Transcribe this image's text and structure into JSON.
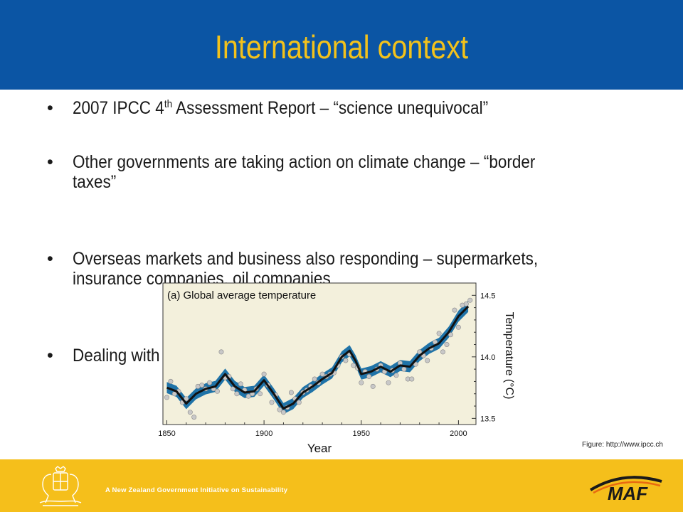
{
  "slide": {
    "title": "International context",
    "bullets": [
      {
        "pre": "2007 IPCC  4",
        "sup": "th",
        "post": " Assessment Report – “science unequivocal”"
      },
      {
        "line1": "Other governments are taking action on climate change – “border",
        "line2": "taxes”"
      },
      {
        "line1": "Overseas markets and business also responding – supermarkets,",
        "line2": "insurance companies, oil companies"
      },
      {
        "text": "Dealing with climate change isn’t going to go away"
      }
    ],
    "bullet_glyph": "•",
    "credit": "Figure: http://www.ipcc.ch",
    "footer_tagline": "A New Zealand Government Initiative on Sustainability",
    "logo_text": "MAF",
    "crest_icon": "nz-coat-of-arms-icon"
  },
  "colors": {
    "header_bg": "#0b55a4",
    "title": "#f3c21b",
    "footer_bg": "#f5bf1b",
    "band": "#1f73a8",
    "smooth_line": "#111111",
    "points": "#c8c8c8",
    "logo_dark": "#1a1a1a",
    "logo_orange": "#e86a10"
  },
  "chart_data": {
    "type": "line",
    "panel_label": "(a) Global average temperature",
    "xlabel": "Year",
    "ylabel": "Temperature (°C)",
    "xlim": [
      1848,
      2009
    ],
    "ylim": [
      13.45,
      14.6
    ],
    "x_ticks": [
      1850,
      1900,
      1950,
      2000
    ],
    "y_ticks": [
      13.5,
      14.0,
      14.5
    ],
    "y_axis_side": "right",
    "grid": false,
    "series": [
      {
        "kind": "smoothed",
        "x": [
          1850,
          1855,
          1860,
          1865,
          1870,
          1875,
          1880,
          1885,
          1890,
          1895,
          1900,
          1905,
          1910,
          1915,
          1920,
          1925,
          1930,
          1935,
          1940,
          1944,
          1947,
          1950,
          1955,
          1960,
          1965,
          1970,
          1975,
          1980,
          1985,
          1990,
          1995,
          2000,
          2005
        ],
        "y": [
          13.75,
          13.72,
          13.62,
          13.7,
          13.74,
          13.76,
          13.86,
          13.76,
          13.71,
          13.72,
          13.81,
          13.7,
          13.58,
          13.62,
          13.71,
          13.76,
          13.82,
          13.87,
          14.0,
          14.05,
          13.97,
          13.86,
          13.88,
          13.92,
          13.88,
          13.93,
          13.92,
          14.01,
          14.07,
          14.11,
          14.2,
          14.33,
          14.41
        ]
      },
      {
        "kind": "annual",
        "x": [
          1850,
          1852,
          1854,
          1856,
          1858,
          1860,
          1862,
          1864,
          1866,
          1868,
          1870,
          1872,
          1874,
          1876,
          1878,
          1880,
          1882,
          1884,
          1886,
          1888,
          1890,
          1892,
          1894,
          1896,
          1898,
          1900,
          1902,
          1904,
          1906,
          1908,
          1910,
          1912,
          1914,
          1916,
          1918,
          1920,
          1922,
          1924,
          1926,
          1928,
          1930,
          1932,
          1934,
          1936,
          1938,
          1940,
          1942,
          1944,
          1946,
          1948,
          1950,
          1952,
          1954,
          1956,
          1958,
          1960,
          1962,
          1964,
          1966,
          1968,
          1970,
          1972,
          1974,
          1976,
          1978,
          1980,
          1982,
          1984,
          1986,
          1988,
          1990,
          1992,
          1994,
          1996,
          1998,
          2000,
          2002,
          2004,
          2006
        ],
        "y": [
          13.67,
          13.8,
          13.7,
          13.72,
          13.63,
          13.66,
          13.55,
          13.51,
          13.76,
          13.77,
          13.74,
          13.79,
          13.74,
          13.72,
          14.04,
          13.83,
          13.84,
          13.74,
          13.7,
          13.78,
          13.73,
          13.68,
          13.7,
          13.74,
          13.7,
          13.86,
          13.77,
          13.63,
          13.69,
          13.57,
          13.55,
          13.59,
          13.71,
          13.66,
          13.63,
          13.71,
          13.73,
          13.76,
          13.82,
          13.79,
          13.86,
          13.84,
          13.86,
          13.87,
          13.93,
          14.0,
          13.97,
          14.02,
          13.93,
          13.91,
          13.79,
          13.88,
          13.84,
          13.76,
          13.9,
          13.93,
          13.88,
          13.79,
          13.89,
          13.85,
          13.95,
          13.9,
          13.82,
          13.82,
          13.94,
          14.04,
          14.01,
          13.97,
          14.07,
          14.12,
          14.19,
          14.04,
          14.1,
          14.18,
          14.38,
          14.24,
          14.42,
          14.43,
          14.46
        ]
      }
    ]
  }
}
